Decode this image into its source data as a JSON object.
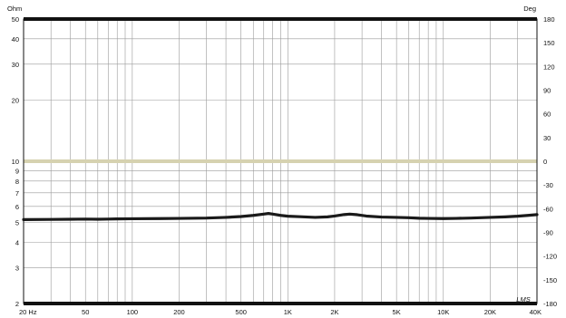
{
  "chart_data": {
    "type": "line",
    "title": "",
    "left_axis_unit": "Ohm",
    "right_axis_unit": "Deg",
    "xscale": "log",
    "xlim": [
      20,
      40000
    ],
    "yscale_left": "log",
    "ylim_left": [
      2,
      50
    ],
    "ylim_right": [
      -180,
      180
    ],
    "x_ticks": [
      {
        "value": 20,
        "label": "20  Hz"
      },
      {
        "value": 50,
        "label": "50"
      },
      {
        "value": 100,
        "label": "100"
      },
      {
        "value": 200,
        "label": "200"
      },
      {
        "value": 500,
        "label": "500"
      },
      {
        "value": 1000,
        "label": "1K"
      },
      {
        "value": 2000,
        "label": "2K"
      },
      {
        "value": 5000,
        "label": "5K"
      },
      {
        "value": 10000,
        "label": "10K"
      },
      {
        "value": 20000,
        "label": "20K"
      },
      {
        "value": 40000,
        "label": "40K"
      }
    ],
    "left_ticks": [
      {
        "value": 2,
        "label": "2"
      },
      {
        "value": 3,
        "label": "3"
      },
      {
        "value": 4,
        "label": "4"
      },
      {
        "value": 5,
        "label": "5"
      },
      {
        "value": 6,
        "label": "6"
      },
      {
        "value": 7,
        "label": "7"
      },
      {
        "value": 8,
        "label": "8"
      },
      {
        "value": 9,
        "label": "9"
      },
      {
        "value": 10,
        "label": "10"
      },
      {
        "value": 20,
        "label": "20"
      },
      {
        "value": 30,
        "label": "30"
      },
      {
        "value": 40,
        "label": "40"
      },
      {
        "value": 50,
        "label": "50"
      }
    ],
    "right_ticks": [
      {
        "value": 180,
        "label": "180"
      },
      {
        "value": 150,
        "label": "150"
      },
      {
        "value": 120,
        "label": "120"
      },
      {
        "value": 90,
        "label": "90"
      },
      {
        "value": 60,
        "label": "60"
      },
      {
        "value": 30,
        "label": "30"
      },
      {
        "value": 0,
        "label": "0"
      },
      {
        "value": -30,
        "label": "-30"
      },
      {
        "value": -60,
        "label": "-60"
      },
      {
        "value": -90,
        "label": "-90"
      },
      {
        "value": -120,
        "label": "-120"
      },
      {
        "value": -150,
        "label": "-150"
      },
      {
        "value": -180,
        "label": "-180"
      }
    ],
    "reference_line": {
      "value": 10,
      "color": "#d6d2b0"
    },
    "grid": true,
    "series": [
      {
        "axis": "left",
        "color": "#1a1a1a",
        "x": [
          20,
          30,
          40,
          50,
          60,
          70,
          80,
          100,
          150,
          200,
          300,
          400,
          500,
          600,
          700,
          750,
          800,
          900,
          1000,
          1200,
          1500,
          1800,
          2000,
          2300,
          2500,
          2800,
          3200,
          4000,
          5000,
          6000,
          7000,
          8000,
          10000,
          12000,
          15000,
          20000,
          25000,
          30000,
          35000,
          40000
        ],
        "y": [
          5.17,
          5.18,
          5.19,
          5.2,
          5.19,
          5.2,
          5.21,
          5.22,
          5.23,
          5.24,
          5.26,
          5.3,
          5.35,
          5.42,
          5.5,
          5.54,
          5.5,
          5.42,
          5.37,
          5.34,
          5.3,
          5.33,
          5.38,
          5.47,
          5.5,
          5.46,
          5.38,
          5.32,
          5.3,
          5.28,
          5.25,
          5.24,
          5.23,
          5.24,
          5.26,
          5.3,
          5.33,
          5.37,
          5.42,
          5.47
        ]
      }
    ],
    "logo_text": "LMS"
  },
  "colors": {
    "frame": "#111111",
    "grid": "#9a9a9a",
    "curve": "#1a1a1a"
  }
}
